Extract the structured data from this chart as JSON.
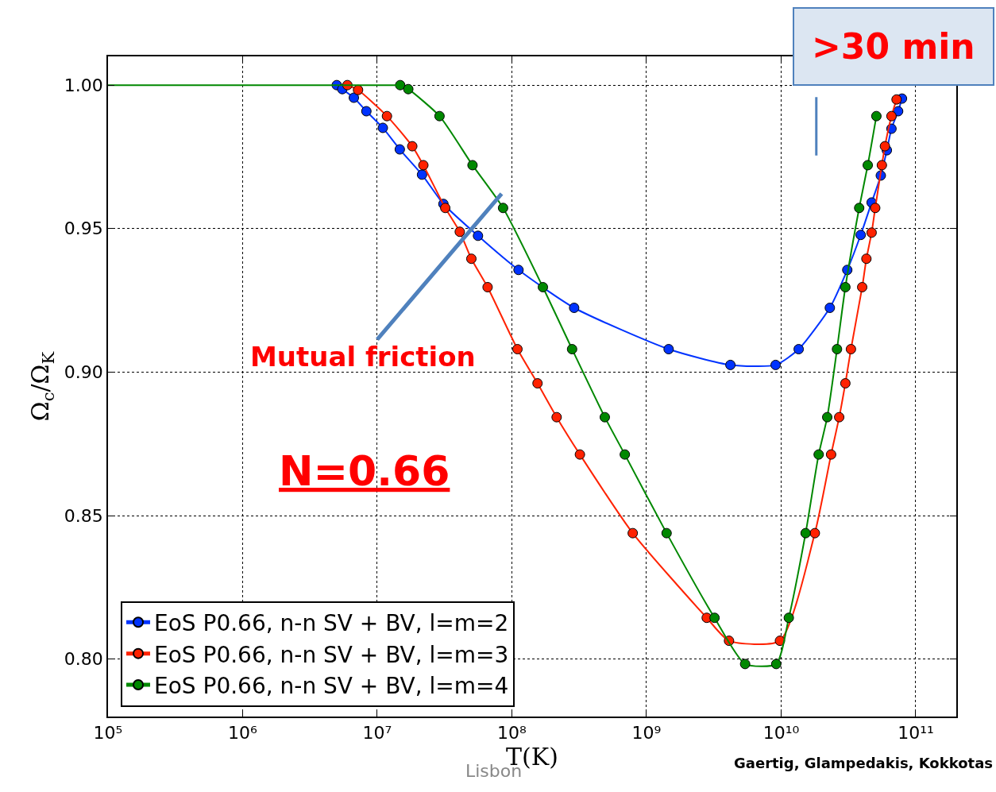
{
  "chart_data": {
    "type": "line",
    "xlabel": "T(K)",
    "ylabel": "Ω$_{c}$/Ω$_{K}$",
    "log": "x",
    "grid": true,
    "legend": "bottom left",
    "marker": "circle",
    "line_style": "solid",
    "xlim": [
      100000,
      200000000000
    ],
    "xticks": [
      {
        "value": 100000,
        "label": "10⁵"
      },
      {
        "value": 1000000,
        "label": "10⁶"
      },
      {
        "value": 10000000,
        "label": "10⁷"
      },
      {
        "value": 100000000,
        "label": "10⁸"
      },
      {
        "value": 1000000000,
        "label": "10⁹"
      },
      {
        "value": 10000000000,
        "label": "10¹⁰"
      },
      {
        "value": 100000000000,
        "label": "10¹¹"
      }
    ],
    "ylim": [
      0.78,
      1.01
    ],
    "yticks": [
      {
        "value": 0.8,
        "label": "0.80"
      },
      {
        "value": 0.85,
        "label": "0.85"
      },
      {
        "value": 0.9,
        "label": "0.90"
      },
      {
        "value": 0.95,
        "label": "0.95"
      },
      {
        "value": 1.0,
        "label": "1.00"
      }
    ],
    "series": [
      {
        "name": "EoS P0.66, n-n SV + BV, l=m=2",
        "color": "#0033ff",
        "x": [
          5000000,
          5500000,
          6700000,
          8300000,
          11000000,
          14700000,
          21500000,
          31000000,
          56000000,
          112000000,
          290000000,
          1460000000,
          4200000000,
          9100000000,
          13500000000,
          23000000000,
          31000000000,
          39000000000,
          47000000000,
          55000000000,
          61000000000,
          66000000000,
          74000000000,
          79000000000
        ],
        "values": [
          1.0,
          0.9986,
          0.9956,
          0.9909,
          0.9851,
          0.9776,
          0.9688,
          0.9586,
          0.9475,
          0.9356,
          0.9224,
          0.908,
          0.9025,
          0.9025,
          0.908,
          0.9224,
          0.9356,
          0.9478,
          0.9591,
          0.9685,
          0.9773,
          0.9848,
          0.9909,
          0.9953
        ]
      },
      {
        "name": "EoS P0.66, n-n SV + BV, l=m=3",
        "color": "#ff2200",
        "x": [
          6000000,
          7200000,
          11800000,
          18200000,
          22000000,
          32000000,
          41000000,
          50000000,
          66000000,
          110000000,
          155000000,
          215000000,
          320000000,
          790000000,
          2800000000,
          4100000000,
          9800000000,
          17800000000,
          23500000000,
          27000000000,
          30000000000,
          33000000000,
          40000000000,
          43000000000,
          47000000000,
          50000000000,
          56000000000,
          59000000000,
          66000000000,
          72000000000
        ],
        "values": [
          1.0,
          0.9983,
          0.9892,
          0.9787,
          0.9721,
          0.9572,
          0.9489,
          0.9395,
          0.9296,
          0.908,
          0.8961,
          0.8843,
          0.8713,
          0.8439,
          0.8144,
          0.8064,
          0.8064,
          0.8439,
          0.8713,
          0.8843,
          0.8961,
          0.908,
          0.9296,
          0.9395,
          0.9486,
          0.9572,
          0.9721,
          0.9787,
          0.9892,
          0.995
        ]
      },
      {
        "name": "EoS P0.66, n-n SV + BV, l=m=4",
        "color": "#008800",
        "x": [
          14800000,
          17000000,
          29000000,
          51000000,
          86000000,
          170000000,
          280000000,
          490000000,
          690000000,
          1410000000,
          3200000000,
          5400000000,
          9200000000,
          11400000000,
          15200000000,
          19000000000,
          22000000000,
          26000000000,
          30000000000,
          38000000000,
          44000000000,
          51000000000
        ],
        "values": [
          1.0,
          0.9986,
          0.9892,
          0.9721,
          0.9572,
          0.9296,
          0.908,
          0.8843,
          0.8713,
          0.8439,
          0.8144,
          0.7983,
          0.7983,
          0.8144,
          0.8439,
          0.8713,
          0.8843,
          0.908,
          0.9296,
          0.9572,
          0.9721,
          0.9892
        ]
      },
      {
        "type": "line",
        "marker": "none",
        "color": "#008800",
        "x": [
          100000,
          14800000
        ],
        "values": [
          1.0,
          1.0
        ]
      }
    ],
    "annotations": [
      "Mutual friction",
      ">30 min",
      "N=0.66",
      "Gaertig, Glampedakis, Kokkotas",
      "Lisbon"
    ]
  }
}
